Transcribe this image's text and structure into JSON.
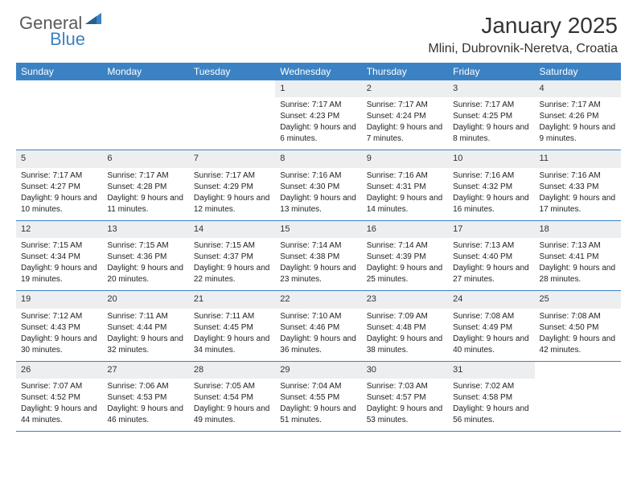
{
  "logo": {
    "general": "General",
    "blue": "Blue"
  },
  "title": "January 2025",
  "location": "Mlini, Dubrovnik-Neretva, Croatia",
  "weekdays": [
    "Sunday",
    "Monday",
    "Tuesday",
    "Wednesday",
    "Thursday",
    "Friday",
    "Saturday"
  ],
  "colors": {
    "header_bg": "#3b82c4",
    "header_text": "#ffffff",
    "daynum_bg": "#eceef0",
    "border": "#3b82c4",
    "logo_gray": "#5a5a5a",
    "logo_blue": "#3b82c4"
  },
  "weeks": [
    [
      null,
      null,
      null,
      {
        "n": "1",
        "sr": "Sunrise: 7:17 AM",
        "ss": "Sunset: 4:23 PM",
        "dl": "Daylight: 9 hours and 6 minutes."
      },
      {
        "n": "2",
        "sr": "Sunrise: 7:17 AM",
        "ss": "Sunset: 4:24 PM",
        "dl": "Daylight: 9 hours and 7 minutes."
      },
      {
        "n": "3",
        "sr": "Sunrise: 7:17 AM",
        "ss": "Sunset: 4:25 PM",
        "dl": "Daylight: 9 hours and 8 minutes."
      },
      {
        "n": "4",
        "sr": "Sunrise: 7:17 AM",
        "ss": "Sunset: 4:26 PM",
        "dl": "Daylight: 9 hours and 9 minutes."
      }
    ],
    [
      {
        "n": "5",
        "sr": "Sunrise: 7:17 AM",
        "ss": "Sunset: 4:27 PM",
        "dl": "Daylight: 9 hours and 10 minutes."
      },
      {
        "n": "6",
        "sr": "Sunrise: 7:17 AM",
        "ss": "Sunset: 4:28 PM",
        "dl": "Daylight: 9 hours and 11 minutes."
      },
      {
        "n": "7",
        "sr": "Sunrise: 7:17 AM",
        "ss": "Sunset: 4:29 PM",
        "dl": "Daylight: 9 hours and 12 minutes."
      },
      {
        "n": "8",
        "sr": "Sunrise: 7:16 AM",
        "ss": "Sunset: 4:30 PM",
        "dl": "Daylight: 9 hours and 13 minutes."
      },
      {
        "n": "9",
        "sr": "Sunrise: 7:16 AM",
        "ss": "Sunset: 4:31 PM",
        "dl": "Daylight: 9 hours and 14 minutes."
      },
      {
        "n": "10",
        "sr": "Sunrise: 7:16 AM",
        "ss": "Sunset: 4:32 PM",
        "dl": "Daylight: 9 hours and 16 minutes."
      },
      {
        "n": "11",
        "sr": "Sunrise: 7:16 AM",
        "ss": "Sunset: 4:33 PM",
        "dl": "Daylight: 9 hours and 17 minutes."
      }
    ],
    [
      {
        "n": "12",
        "sr": "Sunrise: 7:15 AM",
        "ss": "Sunset: 4:34 PM",
        "dl": "Daylight: 9 hours and 19 minutes."
      },
      {
        "n": "13",
        "sr": "Sunrise: 7:15 AM",
        "ss": "Sunset: 4:36 PM",
        "dl": "Daylight: 9 hours and 20 minutes."
      },
      {
        "n": "14",
        "sr": "Sunrise: 7:15 AM",
        "ss": "Sunset: 4:37 PM",
        "dl": "Daylight: 9 hours and 22 minutes."
      },
      {
        "n": "15",
        "sr": "Sunrise: 7:14 AM",
        "ss": "Sunset: 4:38 PM",
        "dl": "Daylight: 9 hours and 23 minutes."
      },
      {
        "n": "16",
        "sr": "Sunrise: 7:14 AM",
        "ss": "Sunset: 4:39 PM",
        "dl": "Daylight: 9 hours and 25 minutes."
      },
      {
        "n": "17",
        "sr": "Sunrise: 7:13 AM",
        "ss": "Sunset: 4:40 PM",
        "dl": "Daylight: 9 hours and 27 minutes."
      },
      {
        "n": "18",
        "sr": "Sunrise: 7:13 AM",
        "ss": "Sunset: 4:41 PM",
        "dl": "Daylight: 9 hours and 28 minutes."
      }
    ],
    [
      {
        "n": "19",
        "sr": "Sunrise: 7:12 AM",
        "ss": "Sunset: 4:43 PM",
        "dl": "Daylight: 9 hours and 30 minutes."
      },
      {
        "n": "20",
        "sr": "Sunrise: 7:11 AM",
        "ss": "Sunset: 4:44 PM",
        "dl": "Daylight: 9 hours and 32 minutes."
      },
      {
        "n": "21",
        "sr": "Sunrise: 7:11 AM",
        "ss": "Sunset: 4:45 PM",
        "dl": "Daylight: 9 hours and 34 minutes."
      },
      {
        "n": "22",
        "sr": "Sunrise: 7:10 AM",
        "ss": "Sunset: 4:46 PM",
        "dl": "Daylight: 9 hours and 36 minutes."
      },
      {
        "n": "23",
        "sr": "Sunrise: 7:09 AM",
        "ss": "Sunset: 4:48 PM",
        "dl": "Daylight: 9 hours and 38 minutes."
      },
      {
        "n": "24",
        "sr": "Sunrise: 7:08 AM",
        "ss": "Sunset: 4:49 PM",
        "dl": "Daylight: 9 hours and 40 minutes."
      },
      {
        "n": "25",
        "sr": "Sunrise: 7:08 AM",
        "ss": "Sunset: 4:50 PM",
        "dl": "Daylight: 9 hours and 42 minutes."
      }
    ],
    [
      {
        "n": "26",
        "sr": "Sunrise: 7:07 AM",
        "ss": "Sunset: 4:52 PM",
        "dl": "Daylight: 9 hours and 44 minutes."
      },
      {
        "n": "27",
        "sr": "Sunrise: 7:06 AM",
        "ss": "Sunset: 4:53 PM",
        "dl": "Daylight: 9 hours and 46 minutes."
      },
      {
        "n": "28",
        "sr": "Sunrise: 7:05 AM",
        "ss": "Sunset: 4:54 PM",
        "dl": "Daylight: 9 hours and 49 minutes."
      },
      {
        "n": "29",
        "sr": "Sunrise: 7:04 AM",
        "ss": "Sunset: 4:55 PM",
        "dl": "Daylight: 9 hours and 51 minutes."
      },
      {
        "n": "30",
        "sr": "Sunrise: 7:03 AM",
        "ss": "Sunset: 4:57 PM",
        "dl": "Daylight: 9 hours and 53 minutes."
      },
      {
        "n": "31",
        "sr": "Sunrise: 7:02 AM",
        "ss": "Sunset: 4:58 PM",
        "dl": "Daylight: 9 hours and 56 minutes."
      },
      null
    ]
  ]
}
